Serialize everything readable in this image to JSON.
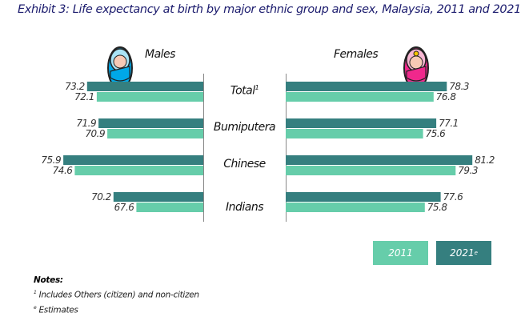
{
  "chart_data": {
    "type": "bar",
    "orientation": "horizontal-butterfly",
    "title": "Exhibit 3: Life expectancy at birth by major ethnic group and sex, Malaysia, 2011 and 2021",
    "categories": [
      "Total",
      "Bumiputera",
      "Chinese",
      "Indians"
    ],
    "category_superscripts": [
      "1",
      "",
      "",
      ""
    ],
    "panels": [
      {
        "name": "Males",
        "series": [
          {
            "name": "2021",
            "values": [
              73.2,
              71.9,
              75.9,
              70.2
            ]
          },
          {
            "name": "2011",
            "values": [
              72.1,
              70.9,
              74.6,
              67.6
            ]
          }
        ]
      },
      {
        "name": "Females",
        "series": [
          {
            "name": "2021",
            "values": [
              78.3,
              77.1,
              81.2,
              77.6
            ]
          },
          {
            "name": "2011",
            "values": [
              76.8,
              75.6,
              79.3,
              75.8
            ]
          }
        ]
      }
    ],
    "legend": [
      {
        "label": "2011",
        "sup": "",
        "color": "#66cdaa"
      },
      {
        "label": "2021",
        "sup": "e",
        "color": "#357f7f"
      }
    ],
    "legend_position": "bottom-right"
  },
  "notes": {
    "heading": "Notes:",
    "items": [
      {
        "sup": "1",
        "text": "Includes Others (citizen) and non-citizen"
      },
      {
        "sup": "e",
        "text": "Estimates"
      }
    ]
  }
}
